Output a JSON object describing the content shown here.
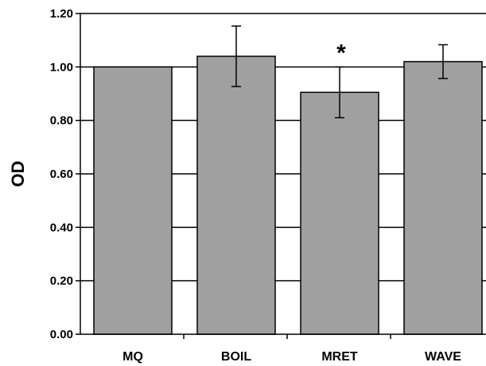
{
  "chart_data": {
    "type": "bar",
    "title": "",
    "xlabel": "",
    "ylabel": "OD",
    "categories": [
      "MQ",
      "BOIL",
      "MRET",
      "WAVE"
    ],
    "values": [
      1.0,
      1.04,
      0.905,
      1.02
    ],
    "error_bars": [
      0.0,
      0.113,
      0.095,
      0.063
    ],
    "annotations": [
      "",
      "",
      "*",
      ""
    ],
    "ylim": [
      0,
      1.2
    ],
    "yticks": [
      "0.00",
      "0.20",
      "0.40",
      "0.60",
      "0.80",
      "1.00",
      "1.20"
    ],
    "grid": true,
    "legend": "none",
    "bar_color": "#a0a0a0",
    "bar_edge_color": "#000000",
    "background_color": "#ffffff"
  }
}
